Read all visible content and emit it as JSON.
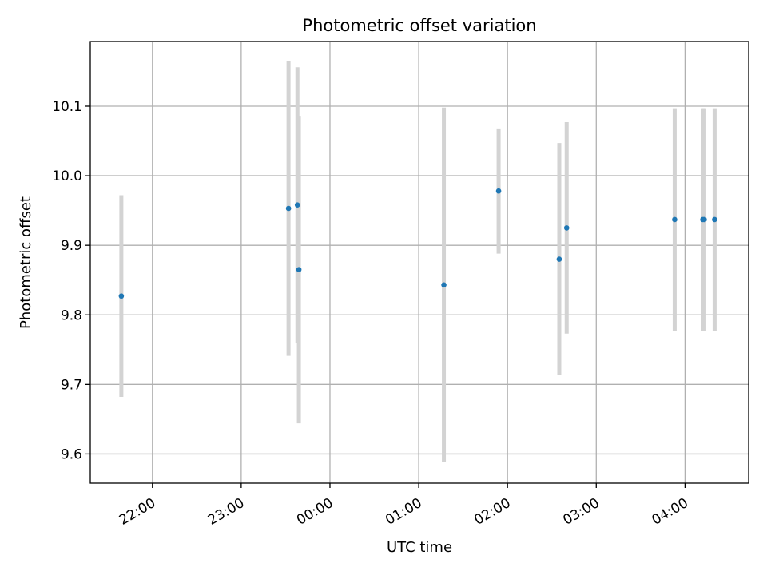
{
  "chart_data": {
    "type": "scatter",
    "title": "Photometric offset variation",
    "xlabel": "UTC time",
    "ylabel": "Photometric offset",
    "x_unit": "UTC time (hours, continuing past midnight)",
    "xlim": [
      "21:18",
      "04:43"
    ],
    "ylim": [
      9.558,
      10.193
    ],
    "grid": true,
    "x_ticks": [
      {
        "value": "22:00",
        "label": "22:00"
      },
      {
        "value": "23:00",
        "label": "23:00"
      },
      {
        "value": "00:00",
        "label": "00:00"
      },
      {
        "value": "01:00",
        "label": "01:00"
      },
      {
        "value": "02:00",
        "label": "02:00"
      },
      {
        "value": "03:00",
        "label": "03:00"
      },
      {
        "value": "04:00",
        "label": "04:00"
      }
    ],
    "y_ticks": [
      {
        "value": 9.6,
        "label": "9.6"
      },
      {
        "value": 9.7,
        "label": "9.7"
      },
      {
        "value": 9.8,
        "label": "9.8"
      },
      {
        "value": 9.9,
        "label": "9.9"
      },
      {
        "value": 10.0,
        "label": "10.0"
      },
      {
        "value": 10.1,
        "label": "10.1"
      }
    ],
    "point_color": "#1f77b4",
    "errorbar_color": "#d3d3d3",
    "points": [
      {
        "time": "21:39",
        "y": 9.827,
        "yerr": 0.145
      },
      {
        "time": "23:32",
        "y": 9.953,
        "yerr": 0.212
      },
      {
        "time": "23:38",
        "y": 9.958,
        "yerr": 0.198
      },
      {
        "time": "23:39",
        "y": 9.865,
        "yerr": 0.221
      },
      {
        "time": "01:17",
        "y": 9.843,
        "yerr": 0.255
      },
      {
        "time": "01:54",
        "y": 9.978,
        "yerr": 0.09
      },
      {
        "time": "02:35",
        "y": 9.88,
        "yerr": 0.167
      },
      {
        "time": "02:40",
        "y": 9.925,
        "yerr": 0.152
      },
      {
        "time": "03:53",
        "y": 9.937,
        "yerr": 0.16
      },
      {
        "time": "04:12",
        "y": 9.937,
        "yerr": 0.16
      },
      {
        "time": "04:13",
        "y": 9.937,
        "yerr": 0.16
      },
      {
        "time": "04:20",
        "y": 9.937,
        "yerr": 0.16
      }
    ]
  }
}
